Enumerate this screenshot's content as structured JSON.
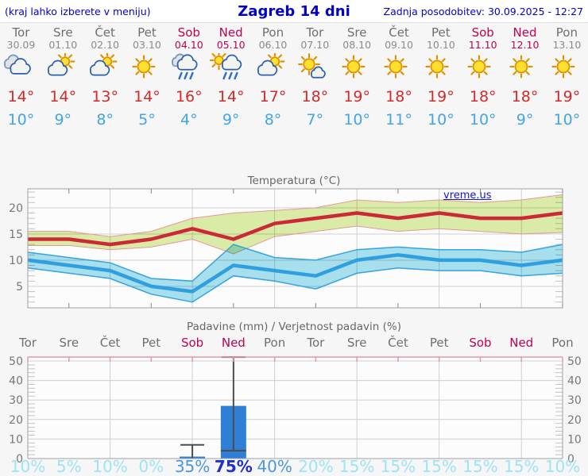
{
  "header": {
    "hint": "(kraj lahko izberete v meniju)",
    "title": "Zagreb 14 dni",
    "updated": "Zadnja posodobitev: 30.09.2025 - 12:27"
  },
  "days": [
    {
      "name": "Tor",
      "date": "30.09",
      "weekend": false,
      "icon": "cloudy",
      "tmax": "14°",
      "tmin": "10°",
      "probability": "10%"
    },
    {
      "name": "Sre",
      "date": "01.10",
      "weekend": false,
      "icon": "partly-cloudy",
      "tmax": "14°",
      "tmin": "9°",
      "probability": "5%"
    },
    {
      "name": "Čet",
      "date": "02.10",
      "weekend": false,
      "icon": "partly-cloudy",
      "tmax": "13°",
      "tmin": "8°",
      "probability": "10%"
    },
    {
      "name": "Pet",
      "date": "03.10",
      "weekend": false,
      "icon": "sunny",
      "tmax": "14°",
      "tmin": "5°",
      "probability": "0%"
    },
    {
      "name": "Sob",
      "date": "04.10",
      "weekend": true,
      "icon": "rain",
      "tmax": "16°",
      "tmin": "4°",
      "probability": "35%"
    },
    {
      "name": "Ned",
      "date": "05.10",
      "weekend": true,
      "icon": "sun-rain",
      "tmax": "14°",
      "tmin": "9°",
      "probability": "75%"
    },
    {
      "name": "Pon",
      "date": "06.10",
      "weekend": false,
      "icon": "partly-cloudy",
      "tmax": "17°",
      "tmin": "8°",
      "probability": "40%"
    },
    {
      "name": "Tor",
      "date": "07.10",
      "weekend": false,
      "icon": "mostly-sunny",
      "tmax": "18°",
      "tmin": "7°",
      "probability": "20%"
    },
    {
      "name": "Sre",
      "date": "08.10",
      "weekend": false,
      "icon": "sunny",
      "tmax": "19°",
      "tmin": "10°",
      "probability": "15%"
    },
    {
      "name": "Čet",
      "date": "09.10",
      "weekend": false,
      "icon": "sunny",
      "tmax": "18°",
      "tmin": "11°",
      "probability": "15%"
    },
    {
      "name": "Pet",
      "date": "10.10",
      "weekend": false,
      "icon": "sunny",
      "tmax": "19°",
      "tmin": "10°",
      "probability": "15%"
    },
    {
      "name": "Sob",
      "date": "11.10",
      "weekend": true,
      "icon": "sunny",
      "tmax": "18°",
      "tmin": "10°",
      "probability": "15%"
    },
    {
      "name": "Ned",
      "date": "12.10",
      "weekend": true,
      "icon": "sunny",
      "tmax": "18°",
      "tmin": "9°",
      "probability": "15%"
    },
    {
      "name": "Pon",
      "date": "13.10",
      "weekend": false,
      "icon": "sunny",
      "tmax": "19°",
      "tmin": "10°",
      "probability": "10%"
    }
  ],
  "temp_section": {
    "title": "Temperatura (°C)",
    "watermark": "vreme.us"
  },
  "precip_section": {
    "title": "Padavine (mm) / Verjetnost padavin (%)"
  },
  "chart_data": [
    {
      "type": "line",
      "title": "Temperatura (°C)",
      "xlabel": "",
      "ylabel": "°C",
      "x": [
        "Tor 30.09",
        "Sre 01.10",
        "Čet 02.10",
        "Pet 03.10",
        "Sob 04.10",
        "Ned 05.10",
        "Pon 06.10",
        "Tor 07.10",
        "Sre 08.10",
        "Čet 09.10",
        "Pet 10.10",
        "Sob 11.10",
        "Ned 12.10",
        "Pon 13.10"
      ],
      "yticks": [
        5,
        10,
        15,
        20
      ],
      "ylim": [
        1,
        23.5
      ],
      "grid": true,
      "series": [
        {
          "name": "max",
          "color": "#cc2936",
          "values": [
            14,
            14,
            13,
            14,
            16,
            14,
            17,
            18,
            19,
            18,
            19,
            18,
            18,
            19
          ]
        },
        {
          "name": "max_upper",
          "color": "#e59898",
          "values": [
            15.5,
            15.5,
            14.5,
            15.5,
            18,
            19,
            19.5,
            20,
            21.5,
            21,
            21.5,
            21,
            21.5,
            22.5
          ]
        },
        {
          "name": "max_lower",
          "color": "#e59898",
          "values": [
            12.8,
            12.8,
            12,
            12.5,
            14,
            11.2,
            14.5,
            15.5,
            16.5,
            15.5,
            16,
            15.5,
            15,
            15.3
          ]
        },
        {
          "name": "min",
          "color": "#2f9fe0",
          "values": [
            10,
            9,
            8,
            5,
            4,
            9,
            8,
            7,
            10,
            11,
            10,
            10,
            9,
            10
          ]
        },
        {
          "name": "min_upper",
          "color": "#35a3e2",
          "values": [
            11.5,
            10.5,
            9.5,
            6.5,
            6,
            13,
            10.5,
            10,
            12,
            12.5,
            12,
            12,
            11.5,
            13
          ]
        },
        {
          "name": "min_lower",
          "color": "#35a3e2",
          "values": [
            8.5,
            7.5,
            6.5,
            3.5,
            2,
            7,
            6,
            4.5,
            7.5,
            8.5,
            8,
            8,
            7,
            7.5
          ]
        }
      ],
      "band_colors": {
        "max": "#ddeeaa",
        "min": "#a9e2ef"
      },
      "watermark": "vreme.us"
    },
    {
      "type": "bar",
      "title": "Padavine (mm) / Verjetnost padavin (%)",
      "categories": [
        "Tor",
        "Sre",
        "Čet",
        "Pet",
        "Sob",
        "Ned",
        "Pon",
        "Tor",
        "Sre",
        "Čet",
        "Pet",
        "Sob",
        "Ned",
        "Pon"
      ],
      "values": [
        0,
        0,
        0,
        0,
        1,
        27,
        0,
        0,
        0,
        0,
        0,
        0,
        0,
        0
      ],
      "ranges": [
        [
          0,
          0
        ],
        [
          0,
          0
        ],
        [
          0,
          0
        ],
        [
          0,
          0
        ],
        [
          0,
          7
        ],
        [
          4,
          52
        ],
        [
          0,
          0
        ],
        [
          0,
          0
        ],
        [
          0,
          0
        ],
        [
          0,
          0
        ],
        [
          0,
          0
        ],
        [
          0,
          0
        ],
        [
          0,
          0
        ],
        [
          0,
          0
        ]
      ],
      "probabilities": [
        10,
        5,
        10,
        0,
        35,
        75,
        40,
        20,
        15,
        15,
        15,
        15,
        15,
        10
      ],
      "yticks": [
        0,
        10,
        20,
        30,
        40,
        50
      ],
      "ylim": [
        0,
        52
      ],
      "bar_color": "#2e7fd6",
      "whisker_color": "#4d4d4d",
      "grid": true
    }
  ]
}
